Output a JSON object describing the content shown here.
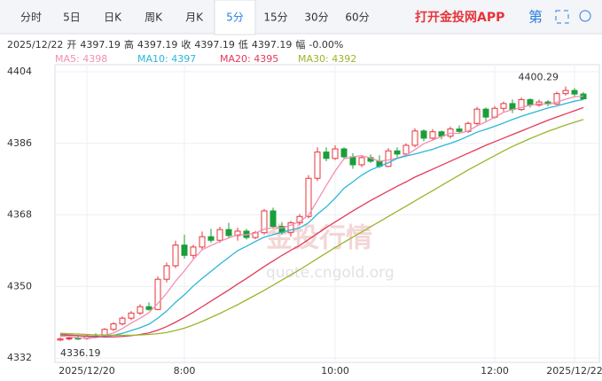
{
  "header": {
    "tabs": [
      "分时",
      "5日",
      "日K",
      "周K",
      "月K",
      "5分",
      "15分",
      "30分",
      "60分"
    ],
    "active_tab": 5,
    "promo": "打开金投网APP",
    "icon": "第"
  },
  "info": [
    "2025/12/22",
    "开",
    "4397.19",
    "高",
    "4397.19",
    "收",
    "4397.19",
    "低",
    "4397.19",
    "幅",
    "-0.00%"
  ],
  "chart_data": {
    "type": "candlestick",
    "categories": [
      null,
      null,
      null,
      "2025/12/20",
      null,
      null,
      null,
      null,
      null,
      null,
      null,
      null,
      null,
      null,
      "8:00",
      null,
      null,
      null,
      null,
      null,
      null,
      null,
      null,
      null,
      null,
      null,
      null,
      null,
      null,
      null,
      null,
      "10:00",
      null,
      null,
      null,
      null,
      null,
      null,
      null,
      null,
      null,
      null,
      null,
      null,
      null,
      null,
      null,
      null,
      null,
      "12:00",
      null,
      null,
      null,
      null,
      null,
      null,
      null,
      null,
      "2025/12/22",
      null
    ],
    "ylim": [
      4332,
      4404
    ],
    "yticks": [
      4332,
      4350,
      4368,
      4386,
      4404
    ],
    "grid": true,
    "up_color": "#e8333a",
    "down_color": "#1a9e3a",
    "candles": [
      [
        4336.5,
        4337.2,
        4336.19,
        4336.8
      ],
      [
        4336.8,
        4337.5,
        4336.4,
        4337.0
      ],
      [
        4337.0,
        4337.6,
        4336.5,
        4336.9
      ],
      [
        4336.9,
        4337.8,
        4336.6,
        4337.5
      ],
      [
        4337.5,
        4338.2,
        4337.0,
        4337.3
      ],
      [
        4337.3,
        4339.5,
        4337.1,
        4339.2
      ],
      [
        4339.2,
        4341.0,
        4338.8,
        4340.6
      ],
      [
        4340.6,
        4342.5,
        4340.2,
        4342.0
      ],
      [
        4342.0,
        4343.8,
        4341.5,
        4343.3
      ],
      [
        4343.3,
        4345.5,
        4342.8,
        4344.9
      ],
      [
        4344.9,
        4346.0,
        4343.9,
        4344.2
      ],
      [
        4344.2,
        4352.5,
        4344.0,
        4351.8
      ],
      [
        4351.8,
        4356.0,
        4351.0,
        4355.2
      ],
      [
        4355.2,
        4361.5,
        4354.6,
        4360.4
      ],
      [
        4360.4,
        4363.0,
        4357.0,
        4357.8
      ],
      [
        4357.8,
        4360.5,
        4357.0,
        4359.9
      ],
      [
        4359.9,
        4363.8,
        4359.2,
        4362.5
      ],
      [
        4362.5,
        4364.5,
        4361.0,
        4361.6
      ],
      [
        4361.6,
        4365.0,
        4361.0,
        4364.3
      ],
      [
        4364.3,
        4366.0,
        4362.0,
        4362.8
      ],
      [
        4362.8,
        4364.8,
        4361.5,
        4363.9
      ],
      [
        4363.9,
        4364.5,
        4361.8,
        4362.3
      ],
      [
        4362.3,
        4364.0,
        4361.9,
        4363.5
      ],
      [
        4363.5,
        4369.5,
        4363.0,
        4369.0
      ],
      [
        4369.0,
        4369.8,
        4364.5,
        4365.1
      ],
      [
        4365.1,
        4366.2,
        4363.0,
        4363.6
      ],
      [
        4363.6,
        4366.5,
        4362.5,
        4366.0
      ],
      [
        4366.0,
        4368.2,
        4365.4,
        4367.6
      ],
      [
        4367.6,
        4378.0,
        4367.1,
        4377.2
      ],
      [
        4377.2,
        4385.0,
        4376.5,
        4383.8
      ],
      [
        4383.8,
        4385.0,
        4381.5,
        4382.2
      ],
      [
        4382.2,
        4385.5,
        4381.8,
        4384.6
      ],
      [
        4384.6,
        4385.0,
        4382.0,
        4382.6
      ],
      [
        4382.6,
        4383.5,
        4379.6,
        4380.6
      ],
      [
        4380.6,
        4383.0,
        4380.0,
        4382.4
      ],
      [
        4382.4,
        4383.2,
        4381.0,
        4381.5
      ],
      [
        4381.5,
        4383.0,
        4379.8,
        4380.2
      ],
      [
        4380.2,
        4384.8,
        4380.0,
        4384.1
      ],
      [
        4384.1,
        4385.0,
        4382.5,
        4383.3
      ],
      [
        4383.3,
        4386.0,
        4382.8,
        4385.5
      ],
      [
        4385.5,
        4389.8,
        4385.0,
        4389.1
      ],
      [
        4389.1,
        4389.5,
        4386.5,
        4387.3
      ],
      [
        4387.3,
        4389.6,
        4386.8,
        4388.9
      ],
      [
        4388.9,
        4389.2,
        4387.0,
        4387.8
      ],
      [
        4387.8,
        4390.2,
        4387.2,
        4389.6
      ],
      [
        4389.6,
        4390.5,
        4388.6,
        4389.0
      ],
      [
        4389.0,
        4391.5,
        4388.6,
        4391.0
      ],
      [
        4391.0,
        4395.2,
        4390.6,
        4394.6
      ],
      [
        4394.6,
        4395.0,
        4391.6,
        4392.6
      ],
      [
        4392.6,
        4395.4,
        4392.2,
        4394.8
      ],
      [
        4394.8,
        4396.5,
        4394.0,
        4396.0
      ],
      [
        4396.0,
        4397.0,
        4393.6,
        4394.5
      ],
      [
        4394.5,
        4397.5,
        4394.2,
        4397.0
      ],
      [
        4397.0,
        4397.3,
        4395.0,
        4395.6
      ],
      [
        4395.6,
        4397.0,
        4395.2,
        4396.4
      ],
      [
        4396.4,
        4396.9,
        4395.3,
        4395.9
      ],
      [
        4395.9,
        4399.0,
        4395.6,
        4398.5
      ],
      [
        4398.5,
        4400.29,
        4398.0,
        4399.3
      ],
      [
        4399.3,
        4399.9,
        4397.8,
        4398.4
      ],
      [
        4398.4,
        4398.9,
        4397.0,
        4397.19
      ]
    ],
    "series": [
      {
        "name": "MA5",
        "legend": "MA5: 4398",
        "color": "#f28fb2",
        "values": [
          4337.5,
          4337.3,
          4337.1,
          4337.0,
          4337.1,
          4337.6,
          4338.3,
          4339.4,
          4340.8,
          4342.0,
          4343.4,
          4345.7,
          4348.3,
          4351.3,
          4353.9,
          4356.8,
          4359.2,
          4360.3,
          4361.3,
          4362.2,
          4363.0,
          4363.0,
          4363.4,
          4364.4,
          4364.8,
          4364.7,
          4365.4,
          4366.3,
          4367.9,
          4371.6,
          4375.4,
          4379.0,
          4382.1,
          4382.6,
          4382.9,
          4382.3,
          4381.5,
          4381.8,
          4382.3,
          4383.0,
          4384.4,
          4385.9,
          4386.8,
          4387.7,
          4388.5,
          4388.5,
          4389.1,
          4390.4,
          4391.4,
          4392.6,
          4393.8,
          4394.5,
          4395.0,
          4395.6,
          4395.9,
          4395.9,
          4396.3,
          4397.1,
          4397.7,
          4397.9
        ]
      },
      {
        "name": "MA10",
        "legend": "MA10: 4397",
        "color": "#2bb6d8",
        "values": [
          4338.0,
          4337.8,
          4337.6,
          4337.4,
          4337.3,
          4337.4,
          4337.7,
          4338.2,
          4338.9,
          4339.6,
          4340.5,
          4342.0,
          4343.8,
          4346.0,
          4347.9,
          4350.1,
          4352.0,
          4353.8,
          4355.6,
          4357.3,
          4359.0,
          4360.1,
          4361.3,
          4362.4,
          4363.0,
          4363.6,
          4364.2,
          4364.7,
          4366.0,
          4368.2,
          4370.0,
          4372.2,
          4374.7,
          4376.3,
          4378.0,
          4379.3,
          4380.2,
          4381.1,
          4382.2,
          4382.8,
          4383.3,
          4383.9,
          4384.5,
          4385.3,
          4386.0,
          4386.8,
          4387.8,
          4388.8,
          4389.5,
          4390.3,
          4391.1,
          4392.0,
          4392.8,
          4393.5,
          4394.2,
          4394.9,
          4395.4,
          4396.0,
          4396.6,
          4397.0
        ]
      },
      {
        "name": "MA20",
        "legend": "MA20: 4395",
        "color": "#e23a5a",
        "values": [
          4337.8,
          4337.7,
          4337.6,
          4337.5,
          4337.4,
          4337.3,
          4337.3,
          4337.4,
          4337.6,
          4337.9,
          4338.3,
          4339.0,
          4339.9,
          4341.0,
          4342.2,
          4343.5,
          4344.9,
          4346.3,
          4347.7,
          4349.1,
          4350.6,
          4352.0,
          4353.5,
          4355.0,
          4356.4,
          4357.8,
          4359.1,
          4360.3,
          4361.8,
          4363.3,
          4364.8,
          4366.2,
          4367.6,
          4369.0,
          4370.3,
          4371.6,
          4372.8,
          4374.0,
          4375.2,
          4376.3,
          4377.5,
          4378.5,
          4379.5,
          4380.5,
          4381.5,
          4382.5,
          4383.5,
          4384.5,
          4385.5,
          4386.4,
          4387.3,
          4388.2,
          4389.1,
          4390.0,
          4390.9,
          4391.8,
          4392.6,
          4393.4,
          4394.2,
          4395.0
        ]
      },
      {
        "name": "MA30",
        "legend": "MA30: 4392",
        "color": "#9ab52a",
        "values": [
          4338.2,
          4338.1,
          4338.0,
          4337.9,
          4337.8,
          4337.8,
          4337.7,
          4337.7,
          4337.7,
          4337.8,
          4337.9,
          4338.1,
          4338.4,
          4338.9,
          4339.5,
          4340.3,
          4341.2,
          4342.2,
          4343.2,
          4344.3,
          4345.4,
          4346.6,
          4347.8,
          4349.0,
          4350.3,
          4351.6,
          4352.9,
          4354.2,
          4355.6,
          4357.0,
          4358.4,
          4359.8,
          4361.1,
          4362.4,
          4363.7,
          4365.0,
          4366.3,
          4367.6,
          4368.9,
          4370.2,
          4371.5,
          4372.8,
          4374.1,
          4375.4,
          4376.7,
          4378.0,
          4379.3,
          4380.5,
          4381.7,
          4382.9,
          4384.1,
          4385.2,
          4386.2,
          4387.2,
          4388.1,
          4389.0,
          4389.8,
          4390.6,
          4391.3,
          4392.0
        ]
      }
    ],
    "annotations": [
      {
        "text": "4400.29",
        "index": 57
      },
      {
        "text": "4336.19",
        "index": 0
      }
    ],
    "watermark": [
      "金投行情",
      "quote.cngold.org"
    ]
  }
}
